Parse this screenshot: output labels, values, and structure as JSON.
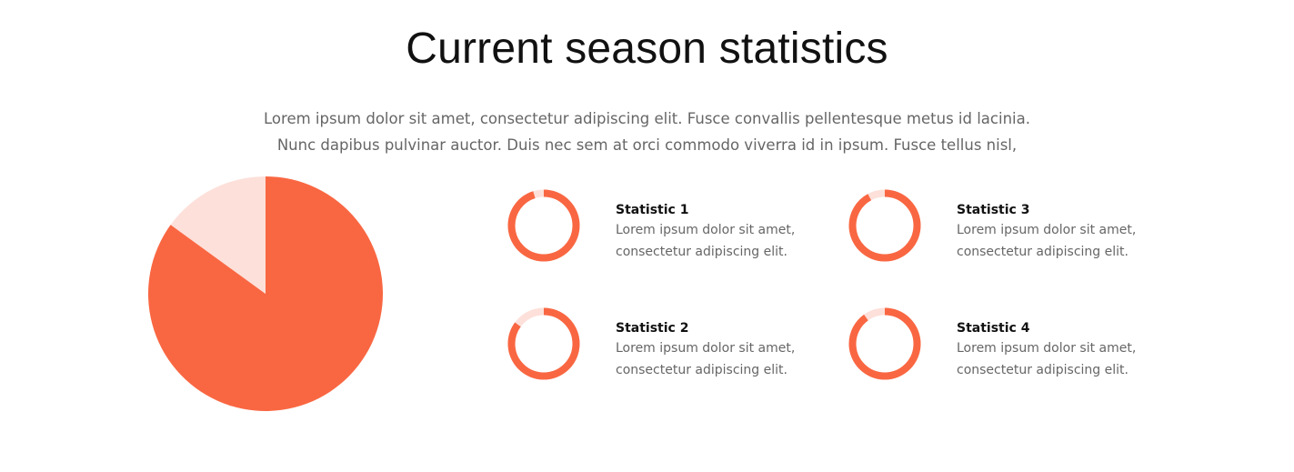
{
  "header": {
    "title": "Current season statistics",
    "intro_line_1": "Lorem ipsum dolor sit amet, consectetur adipiscing elit. Fusce convallis pellentesque metus id lacinia.",
    "intro_line_2": "Nunc dapibus pulvinar auctor. Duis nec sem at orci commodo viverra id in ipsum. Fusce tellus nisl,"
  },
  "colors": {
    "accent": "#f96742",
    "accent_light": "#fde0da"
  },
  "chart_data": [
    {
      "type": "pie",
      "slices": [
        {
          "value": 85,
          "color": "#f96742"
        },
        {
          "value": 15,
          "color": "#fde0da"
        }
      ]
    },
    {
      "type": "pie",
      "variant": "donut",
      "label": "Statistic 1",
      "description_line_1": "Lorem ipsum dolor sit amet,",
      "description_line_2": "consectetur adipiscing elit.",
      "value": 95
    },
    {
      "type": "pie",
      "variant": "donut",
      "label": "Statistic 2",
      "description_line_1": "Lorem ipsum dolor sit amet,",
      "description_line_2": "consectetur adipiscing elit.",
      "value": 85
    },
    {
      "type": "pie",
      "variant": "donut",
      "label": "Statistic 3",
      "description_line_1": "Lorem ipsum dolor sit amet,",
      "description_line_2": "consectetur adipiscing elit.",
      "value": 92
    },
    {
      "type": "pie",
      "variant": "donut",
      "label": "Statistic 4",
      "description_line_1": "Lorem ipsum dolor sit amet,",
      "description_line_2": "consectetur adipiscing elit.",
      "value": 90
    }
  ]
}
